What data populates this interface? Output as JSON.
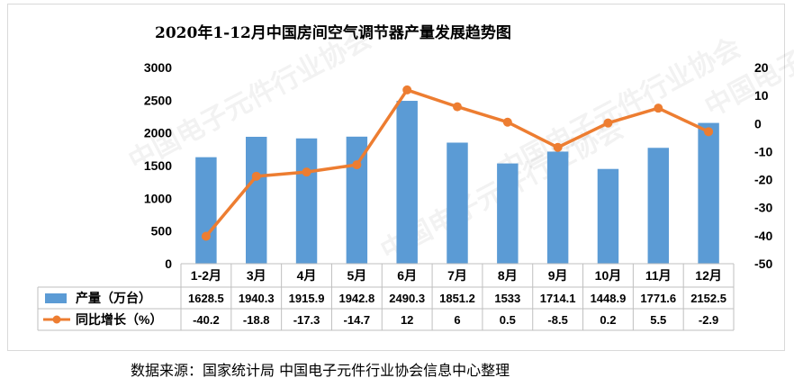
{
  "chart_title": "2020年1-12月中国房间空气调节器产量发展趋势图",
  "source_note": "数据来源：国家统计局    中国电子元件行业协会信息中心整理",
  "watermark": "中国电子元件行业协会",
  "colors": {
    "bar": "#5b9bd5",
    "line": "#ed7d31"
  },
  "chart_data": {
    "type": "bar+line",
    "title": "2020年1-12月中国房间空气调节器产量发展趋势图",
    "categories": [
      "1-2月",
      "3月",
      "4月",
      "5月",
      "6月",
      "7月",
      "8月",
      "9月",
      "10月",
      "11月",
      "12月"
    ],
    "series": [
      {
        "name": "产量（万台）",
        "type": "bar",
        "axis": "left",
        "values": [
          1628.5,
          1940.3,
          1915.9,
          1942.8,
          2490.3,
          1851.2,
          1533,
          1714.1,
          1448.9,
          1771.6,
          2152.5
        ]
      },
      {
        "name": "同比增长（%）",
        "type": "line",
        "axis": "right",
        "values": [
          -40.2,
          -18.8,
          -17.3,
          -14.7,
          12,
          6,
          0.5,
          -8.5,
          0.2,
          5.5,
          -2.9
        ]
      }
    ],
    "data_table": {
      "bar_row": [
        "1628.5",
        "1940.3",
        "1915.9",
        "1942.8",
        "2490.3",
        "1851.2",
        "1533",
        "1714.1",
        "1448.9",
        "1771.6",
        "2152.5"
      ],
      "line_row": [
        "-40.2",
        "-18.8",
        "-17.3",
        "-14.7",
        "12",
        "6",
        "0.5",
        "-8.5",
        "0.2",
        "5.5",
        "-2.9"
      ]
    },
    "y_left": {
      "min": 0,
      "max": 3000,
      "ticks": [
        "0",
        "500",
        "1000",
        "1500",
        "2000",
        "2500",
        "3000"
      ]
    },
    "y_right": {
      "min": -50,
      "max": 20,
      "ticks": [
        "-50",
        "-40",
        "-30",
        "-20",
        "-10",
        "0",
        "10",
        "20"
      ]
    },
    "grid": false,
    "legend_placement": "data-table-left"
  }
}
